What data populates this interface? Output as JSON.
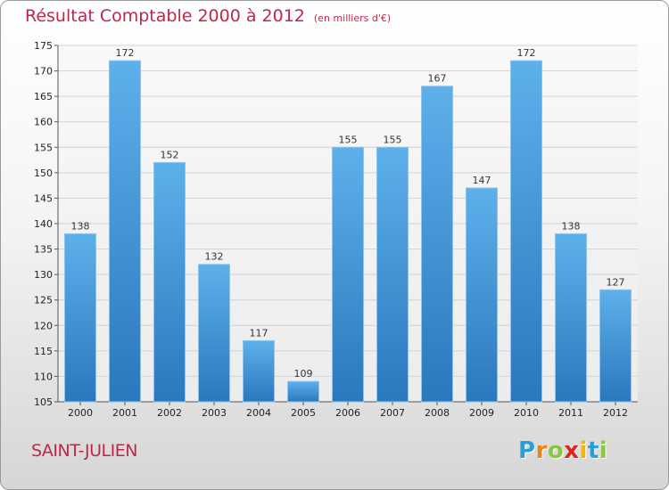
{
  "header": {
    "title": "Résultat Comptable 2000 à 2012",
    "unit": "(en milliers d'€)"
  },
  "footer": {
    "city": "SAINT-JULIEN",
    "logo_letters": [
      "P",
      "r",
      "o",
      "x",
      "i",
      "t",
      "i"
    ],
    "logo_colors": [
      "#2a9fd6",
      "#e8841a",
      "#8cc63f",
      "#e2231a",
      "#f2b705",
      "#2a9fd6",
      "#8cc63f"
    ]
  },
  "chart_data": {
    "type": "bar",
    "title": "Résultat Comptable 2000 à 2012",
    "subtitle": "(en milliers d'€)",
    "xlabel": "",
    "ylabel": "",
    "categories": [
      "2000",
      "2001",
      "2002",
      "2003",
      "2004",
      "2005",
      "2006",
      "2007",
      "2008",
      "2009",
      "2010",
      "2011",
      "2012"
    ],
    "values": [
      138,
      172,
      152,
      132,
      117,
      109,
      155,
      155,
      167,
      147,
      172,
      138,
      127
    ],
    "ylim": [
      105,
      175
    ],
    "yticks": [
      105,
      110,
      115,
      120,
      125,
      130,
      135,
      140,
      145,
      150,
      155,
      160,
      165,
      170,
      175
    ],
    "grid": true,
    "bar_color": "#3b8fd6"
  }
}
